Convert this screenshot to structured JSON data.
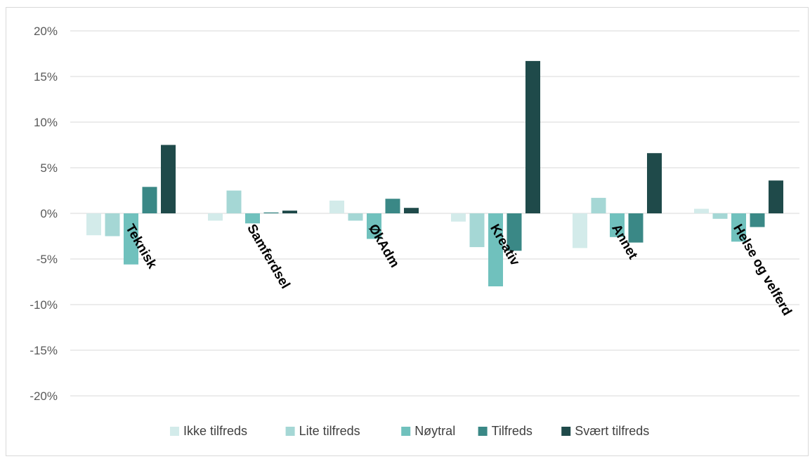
{
  "chart_data": {
    "type": "bar",
    "categories": [
      "Teknisk",
      "Samferdsel",
      "ØkAdm",
      "Kreativ",
      "Annet",
      "Helse og velferd"
    ],
    "series": [
      {
        "name": "Ikke tilfreds",
        "color": "#d3ebea",
        "values": [
          -2.4,
          -0.8,
          1.4,
          -0.9,
          -3.8,
          0.5
        ]
      },
      {
        "name": "Lite tilfreds",
        "color": "#a5d7d5",
        "values": [
          -2.5,
          2.5,
          -0.8,
          -3.7,
          1.7,
          -0.6
        ]
      },
      {
        "name": "Nøytral",
        "color": "#70c1bd",
        "values": [
          -5.6,
          -1.1,
          -2.8,
          -8.0,
          -2.6,
          -3.1
        ]
      },
      {
        "name": "Tilfreds",
        "color": "#3a8886",
        "values": [
          2.9,
          0.1,
          1.6,
          -4.1,
          -3.2,
          -1.5
        ]
      },
      {
        "name": "Svært tilfreds",
        "color": "#1f4a4a",
        "values": [
          7.5,
          0.3,
          0.6,
          16.7,
          6.6,
          3.6
        ]
      }
    ],
    "ylim": [
      -20,
      20
    ],
    "yticks": [
      -20,
      -15,
      -10,
      -5,
      0,
      5,
      10,
      15,
      20
    ],
    "ytick_labels": [
      "-20%",
      "-15%",
      "-10%",
      "-5%",
      "0%",
      "5%",
      "10%",
      "15%",
      "20%"
    ],
    "grid": true,
    "legend_position": "bottom",
    "category_label_rotation": 60
  }
}
